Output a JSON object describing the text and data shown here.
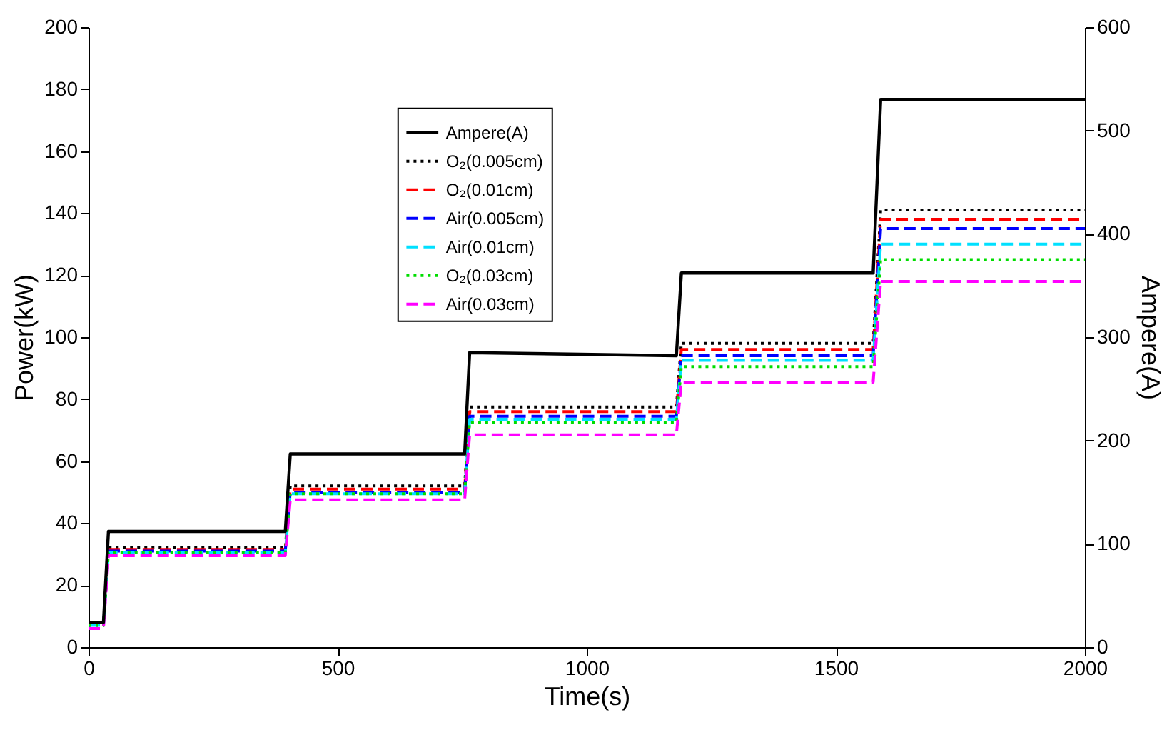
{
  "chart_data": {
    "type": "line",
    "xlabel": "Time(s)",
    "ylabel": "Power(kW)",
    "y2label": "Ampere(A)",
    "x": [
      0,
      30,
      40,
      395,
      405,
      755,
      765,
      1180,
      1190,
      1575,
      1590,
      2000
    ],
    "xlim": [
      0,
      2000
    ],
    "xticks": [
      0,
      500,
      1000,
      1500,
      2000
    ],
    "ylim": [
      0,
      200
    ],
    "yticks": [
      0,
      20,
      40,
      60,
      80,
      100,
      120,
      140,
      160,
      180,
      200
    ],
    "y2lim": [
      0,
      600
    ],
    "y2ticks": [
      0,
      100,
      200,
      300,
      400,
      500,
      600
    ],
    "grid": false,
    "legend": "top",
    "marker": "none",
    "series": [
      {
        "name": "Ampere(A)",
        "color": "#000000",
        "line_style": "solid",
        "axis": "y2",
        "values": [
          24,
          24,
          112,
          112,
          187,
          187,
          285,
          282,
          362,
          362,
          530,
          530
        ]
      },
      {
        "name": "O₂(0.005cm)",
        "color": "#000000",
        "line_style": "dotted",
        "values": [
          7,
          7,
          32,
          32,
          52,
          52,
          77.5,
          77.5,
          98,
          98,
          141,
          141
        ]
      },
      {
        "name": "O₂(0.01cm)",
        "color": "#ff0000",
        "line_style": "dashed",
        "values": [
          null,
          null,
          31.5,
          31.5,
          51,
          51,
          76,
          76,
          96,
          96,
          138,
          138
        ]
      },
      {
        "name": "Air(0.005cm)",
        "color": "#0000ff",
        "line_style": "dashed",
        "values": [
          null,
          null,
          31,
          31,
          50,
          50,
          74.5,
          74.5,
          94,
          94,
          135,
          135
        ]
      },
      {
        "name": "Air(0.01cm)",
        "color": "#00e0ff",
        "line_style": "dashed",
        "values": [
          7,
          7,
          30.5,
          30.5,
          49.5,
          49.5,
          73.5,
          73.5,
          92.5,
          92.5,
          130,
          130
        ]
      },
      {
        "name": "O₂(0.03cm)",
        "color": "#00dd00",
        "line_style": "dotted",
        "values": [
          7,
          7,
          30.5,
          30.5,
          49.5,
          49.5,
          72.5,
          72.5,
          90.5,
          90.5,
          125,
          125
        ]
      },
      {
        "name": "Air(0.03cm)",
        "color": "#ff00ff",
        "line_style": "dashed",
        "values": [
          6,
          6,
          29.5,
          29.5,
          47.5,
          47.5,
          68.5,
          68.5,
          85.5,
          85.5,
          118,
          118
        ]
      }
    ]
  }
}
